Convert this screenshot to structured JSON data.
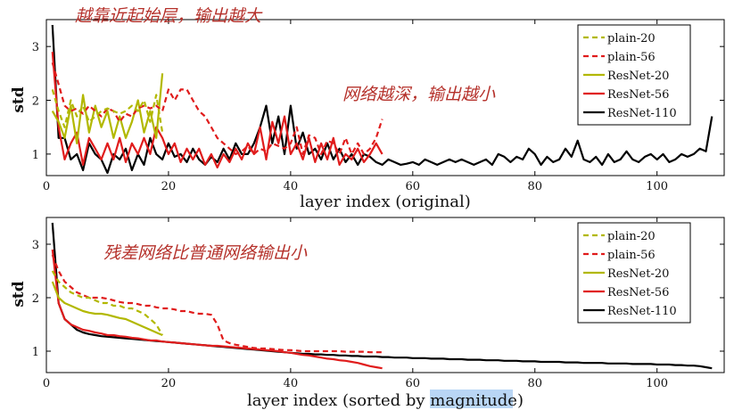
{
  "colors": {
    "plain20": "#b2b800",
    "plain56": "#e01c1c",
    "resnet20": "#b2b800",
    "resnet56": "#e01c1c",
    "resnet110": "#000000",
    "annotation": "#b5312b",
    "highlight": "#b9d6f5"
  },
  "annotations": {
    "top_left": "越靠近起始层，输出越大",
    "top_right": "网络越深，输出越小",
    "bottom": "残差网络比普通网络输出小"
  },
  "chart_data": [
    {
      "type": "line",
      "xlabel": "layer index (original)",
      "ylabel": "std",
      "xlim": [
        0,
        111
      ],
      "ylim": [
        0.6,
        3.5
      ],
      "xticks": [
        0,
        20,
        40,
        60,
        80,
        100
      ],
      "yticks": [
        1,
        2,
        3
      ],
      "legend_position": "top-right",
      "series": [
        {
          "name": "plain-20",
          "style": "dashed",
          "color": "#b2b800",
          "start": 1,
          "values": [
            2.2,
            1.8,
            1.5,
            2.0,
            1.7,
            1.9,
            1.6,
            1.7,
            1.8,
            1.85,
            1.8,
            1.75,
            1.8,
            1.9,
            1.8,
            2.0,
            1.6,
            2.1,
            1.4
          ]
        },
        {
          "name": "plain-56",
          "style": "dashed",
          "color": "#e01c1c",
          "start": 1,
          "values": [
            2.7,
            2.3,
            1.9,
            1.8,
            1.85,
            1.75,
            1.9,
            1.8,
            1.7,
            1.85,
            1.8,
            1.6,
            1.75,
            1.7,
            1.85,
            1.9,
            1.85,
            1.9,
            1.8,
            2.2,
            2.0,
            2.2,
            2.2,
            2.0,
            1.8,
            1.7,
            1.5,
            1.3,
            1.2,
            1.1,
            1.0,
            1.05,
            1.15,
            1.0,
            1.1,
            1.05,
            1.2,
            1.15,
            1.1,
            1.2,
            1.5,
            1.0,
            1.35,
            1.3,
            1.0,
            1.25,
            1.2,
            1.0,
            1.3,
            1.0,
            1.2,
            1.0,
            1.1,
            1.3,
            1.65
          ]
        },
        {
          "name": "ResNet-20",
          "style": "solid",
          "color": "#b2b800",
          "start": 1,
          "values": [
            1.8,
            1.6,
            1.3,
            1.9,
            1.2,
            2.1,
            1.4,
            1.9,
            1.5,
            1.8,
            1.3,
            1.7,
            1.3,
            1.6,
            2.0,
            1.4,
            1.8,
            1.3,
            2.5
          ]
        },
        {
          "name": "ResNet-56",
          "style": "solid",
          "color": "#e01c1c",
          "start": 1,
          "values": [
            2.9,
            1.5,
            0.9,
            1.2,
            1.4,
            0.8,
            1.3,
            1.1,
            0.9,
            1.2,
            0.9,
            1.3,
            0.85,
            1.2,
            1.0,
            1.3,
            1.0,
            1.5,
            1.3,
            1.0,
            1.2,
            0.85,
            1.1,
            0.9,
            1.1,
            0.8,
            1.0,
            0.75,
            1.0,
            0.85,
            1.1,
            0.9,
            1.2,
            1.0,
            1.5,
            0.9,
            1.6,
            1.2,
            1.7,
            1.0,
            1.2,
            0.9,
            1.3,
            0.85,
            1.2,
            0.9,
            1.3,
            0.8,
            1.0,
            0.9,
            1.1,
            0.85,
            1.0,
            1.2,
            1.0
          ]
        },
        {
          "name": "ResNet-110",
          "style": "solid",
          "color": "#000000",
          "start": 1,
          "values": [
            3.4,
            1.3,
            1.3,
            0.9,
            1.0,
            0.7,
            1.2,
            1.0,
            0.9,
            0.65,
            1.0,
            0.9,
            1.1,
            0.7,
            1.0,
            0.8,
            1.3,
            1.0,
            0.9,
            1.2,
            0.95,
            1.0,
            0.85,
            1.1,
            0.9,
            0.8,
            0.95,
            0.85,
            1.1,
            0.9,
            1.2,
            1.0,
            1.0,
            1.2,
            1.5,
            1.9,
            1.2,
            1.7,
            1.0,
            1.9,
            1.1,
            1.4,
            1.0,
            1.1,
            0.9,
            1.2,
            0.9,
            1.1,
            0.85,
            1.0,
            0.8,
            1.0,
            0.95,
            0.85,
            0.8,
            0.9,
            0.85,
            0.8,
            0.82,
            0.85,
            0.8,
            0.9,
            0.85,
            0.8,
            0.85,
            0.9,
            0.85,
            0.9,
            0.85,
            0.8,
            0.85,
            0.9,
            0.8,
            1.0,
            0.95,
            0.85,
            0.95,
            0.9,
            1.1,
            1.0,
            0.8,
            0.95,
            0.85,
            0.9,
            1.1,
            0.95,
            1.25,
            0.9,
            0.85,
            0.95,
            0.8,
            1.0,
            0.85,
            0.9,
            1.05,
            0.9,
            0.85,
            0.95,
            1.0,
            0.9,
            1.0,
            0.85,
            0.9,
            1.0,
            0.95,
            1.0,
            1.1,
            1.05,
            1.7
          ]
        }
      ]
    },
    {
      "type": "line",
      "xlabel_prefix": "layer index (sorted by ",
      "xlabel_highlight": "magnitude",
      "xlabel_suffix": ")",
      "ylabel": "std",
      "xlim": [
        0,
        111
      ],
      "ylim": [
        0.6,
        3.5
      ],
      "xticks": [
        0,
        20,
        40,
        60,
        80,
        100
      ],
      "yticks": [
        1,
        2,
        3
      ],
      "legend_position": "top-right",
      "series": [
        {
          "name": "plain-20",
          "style": "dashed",
          "color": "#b2b800",
          "start": 1,
          "values": [
            2.5,
            2.3,
            2.2,
            2.1,
            2.05,
            2.0,
            2.0,
            1.95,
            1.9,
            1.9,
            1.85,
            1.85,
            1.8,
            1.8,
            1.75,
            1.7,
            1.6,
            1.5,
            1.3
          ]
        },
        {
          "name": "plain-56",
          "style": "dashed",
          "color": "#e01c1c",
          "start": 1,
          "values": [
            2.8,
            2.5,
            2.3,
            2.2,
            2.1,
            2.05,
            2.0,
            2.0,
            2.0,
            1.98,
            1.95,
            1.92,
            1.9,
            1.9,
            1.88,
            1.85,
            1.85,
            1.82,
            1.8,
            1.8,
            1.78,
            1.75,
            1.75,
            1.72,
            1.7,
            1.7,
            1.68,
            1.5,
            1.2,
            1.15,
            1.12,
            1.1,
            1.08,
            1.06,
            1.05,
            1.05,
            1.04,
            1.03,
            1.02,
            1.02,
            1.01,
            1.0,
            1.0,
            1.0,
            1.0,
            1.0,
            1.0,
            1.0,
            0.99,
            0.99,
            0.99,
            0.99,
            0.98,
            0.98,
            0.98
          ]
        },
        {
          "name": "ResNet-20",
          "style": "solid",
          "color": "#b2b800",
          "start": 1,
          "values": [
            2.3,
            2.0,
            1.9,
            1.85,
            1.8,
            1.75,
            1.72,
            1.7,
            1.7,
            1.68,
            1.65,
            1.62,
            1.6,
            1.55,
            1.5,
            1.45,
            1.4,
            1.35,
            1.3
          ]
        },
        {
          "name": "ResNet-56",
          "style": "solid",
          "color": "#e01c1c",
          "start": 1,
          "values": [
            2.9,
            1.9,
            1.6,
            1.5,
            1.45,
            1.4,
            1.38,
            1.35,
            1.33,
            1.3,
            1.3,
            1.28,
            1.27,
            1.25,
            1.24,
            1.22,
            1.2,
            1.2,
            1.18,
            1.17,
            1.16,
            1.15,
            1.14,
            1.13,
            1.12,
            1.11,
            1.1,
            1.1,
            1.09,
            1.08,
            1.07,
            1.06,
            1.05,
            1.04,
            1.03,
            1.02,
            1.01,
            1.0,
            0.98,
            0.97,
            0.95,
            0.93,
            0.92,
            0.9,
            0.88,
            0.86,
            0.85,
            0.83,
            0.82,
            0.8,
            0.78,
            0.75,
            0.72,
            0.7,
            0.68
          ]
        },
        {
          "name": "ResNet-110",
          "style": "solid",
          "color": "#000000",
          "start": 1,
          "values": [
            3.4,
            1.9,
            1.6,
            1.5,
            1.4,
            1.35,
            1.32,
            1.3,
            1.28,
            1.27,
            1.26,
            1.25,
            1.24,
            1.23,
            1.22,
            1.21,
            1.2,
            1.19,
            1.18,
            1.17,
            1.16,
            1.15,
            1.14,
            1.13,
            1.12,
            1.11,
            1.1,
            1.09,
            1.08,
            1.07,
            1.06,
            1.05,
            1.04,
            1.03,
            1.02,
            1.01,
            1.0,
            0.99,
            0.98,
            0.97,
            0.96,
            0.95,
            0.95,
            0.94,
            0.94,
            0.93,
            0.93,
            0.92,
            0.92,
            0.91,
            0.91,
            0.9,
            0.9,
            0.9,
            0.89,
            0.89,
            0.88,
            0.88,
            0.88,
            0.87,
            0.87,
            0.87,
            0.86,
            0.86,
            0.86,
            0.85,
            0.85,
            0.85,
            0.84,
            0.84,
            0.84,
            0.83,
            0.83,
            0.83,
            0.82,
            0.82,
            0.82,
            0.81,
            0.81,
            0.81,
            0.8,
            0.8,
            0.8,
            0.8,
            0.79,
            0.79,
            0.79,
            0.78,
            0.78,
            0.78,
            0.78,
            0.77,
            0.77,
            0.77,
            0.77,
            0.76,
            0.76,
            0.76,
            0.76,
            0.75,
            0.75,
            0.75,
            0.74,
            0.74,
            0.73,
            0.73,
            0.72,
            0.7,
            0.68
          ]
        }
      ]
    }
  ]
}
